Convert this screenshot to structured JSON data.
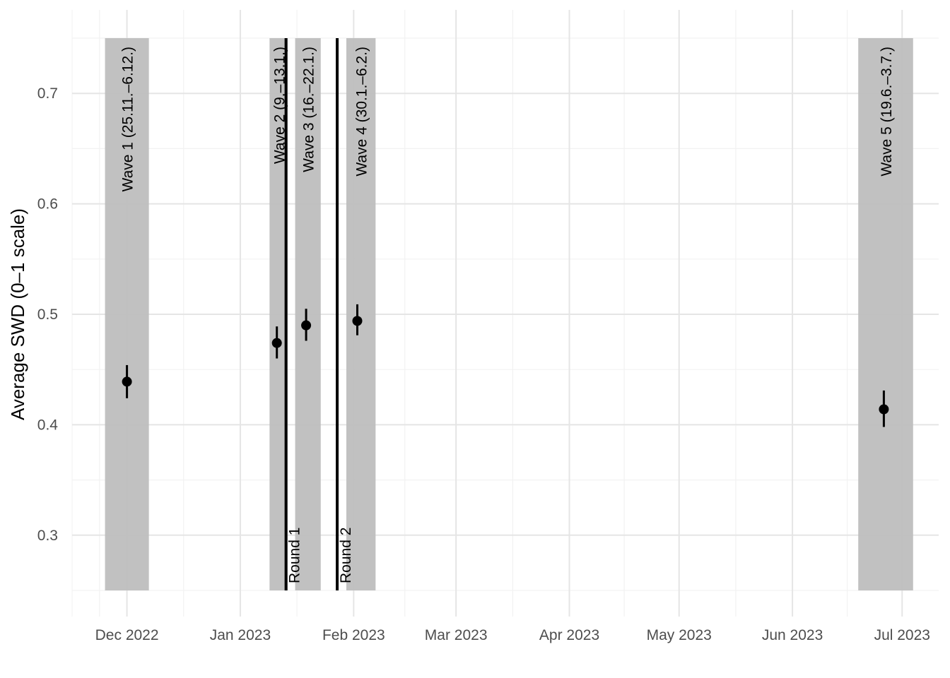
{
  "chart_data": {
    "type": "scatter",
    "title": "",
    "xlabel": "",
    "ylabel": "Average SWD (0–1 scale)",
    "x_scale": "date",
    "xlim": [
      "2022-11-16",
      "2023-07-11"
    ],
    "ylim": [
      0.25,
      0.75
    ],
    "grid": true,
    "x_ticks": [
      {
        "date": "2022-12-01",
        "label": "Dec 2022"
      },
      {
        "date": "2023-01-01",
        "label": "Jan 2023"
      },
      {
        "date": "2023-02-01",
        "label": "Feb 2023"
      },
      {
        "date": "2023-03-01",
        "label": "Mar 2023"
      },
      {
        "date": "2023-04-01",
        "label": "Apr 2023"
      },
      {
        "date": "2023-05-01",
        "label": "May 2023"
      },
      {
        "date": "2023-06-01",
        "label": "Jun 2023"
      },
      {
        "date": "2023-07-01",
        "label": "Jul 2023"
      }
    ],
    "y_ticks": [
      {
        "value": 0.3,
        "label": "0.3"
      },
      {
        "value": 0.4,
        "label": "0.4"
      },
      {
        "value": 0.5,
        "label": "0.5"
      },
      {
        "value": 0.6,
        "label": "0.6"
      },
      {
        "value": 0.7,
        "label": "0.7"
      }
    ],
    "bands": [
      {
        "label": "Wave 1 (25.11.–6.12.)",
        "start": "2022-11-25",
        "end": "2022-12-06"
      },
      {
        "label": "Wave 2 (9.–13.1.)",
        "start": "2023-01-09",
        "end": "2023-01-13"
      },
      {
        "label": "Wave 3 (16.–22.1.)",
        "start": "2023-01-16",
        "end": "2023-01-22"
      },
      {
        "label": "Wave 4 (30.1.–6.2.)",
        "start": "2023-01-30",
        "end": "2023-02-06"
      },
      {
        "label": "Wave 5 (19.6.–3.7.)",
        "start": "2023-06-19",
        "end": "2023-07-03"
      }
    ],
    "vlines": [
      {
        "label": "Round 1",
        "date": "2023-01-13"
      },
      {
        "label": "Round 2",
        "date": "2023-01-27"
      }
    ],
    "points": [
      {
        "x": "2022-12-01",
        "y": 0.439,
        "lower": 0.424,
        "upper": 0.454
      },
      {
        "x": "2023-01-11",
        "y": 0.474,
        "lower": 0.46,
        "upper": 0.489
      },
      {
        "x": "2023-01-19",
        "y": 0.49,
        "lower": 0.476,
        "upper": 0.505
      },
      {
        "x": "2023-02-02",
        "y": 0.494,
        "lower": 0.481,
        "upper": 0.509
      },
      {
        "x": "2023-06-26",
        "y": 0.414,
        "lower": 0.398,
        "upper": 0.431
      }
    ],
    "colors": {
      "band": "#bebebe",
      "point": "#000000",
      "vline": "#000000",
      "grid_major": "#e5e5e5",
      "grid_minor": "#f2f2f2"
    }
  }
}
